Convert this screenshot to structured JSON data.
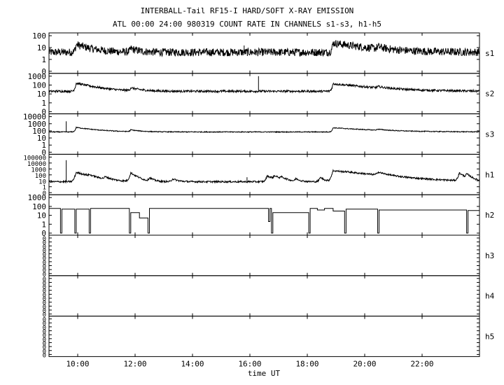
{
  "chart_data": {
    "type": "line",
    "title": "INTERBALL-Tail RF15-I HARD/SOFT X-RAY EMISSION",
    "subtitle": "ATL 00:00 24:00 980319  COUNT RATE IN CHANNELS s1-s3, h1-h5",
    "xlabel": "time UT",
    "xlim": [
      9.0,
      24.0
    ],
    "x_ticks": [
      "10:00",
      "12:00",
      "14:00",
      "16:00",
      "18:00",
      "20:00",
      "22:00"
    ],
    "x_tick_values": [
      10,
      12,
      14,
      16,
      18,
      20,
      22
    ],
    "y_scale": "log",
    "panels": [
      {
        "name": "s1",
        "ytick_labels": [
          "100",
          "10",
          "1",
          "0"
        ],
        "ylim_exp": [
          0,
          2
        ],
        "base": 4,
        "noise": 0.33,
        "peaks": [
          [
            9.95,
            14,
            0.45
          ],
          [
            11.85,
            4,
            0.25
          ],
          [
            18.9,
            20,
            1.0
          ],
          [
            20.45,
            4,
            0.25
          ]
        ],
        "spikes": [
          [
            15.8,
            15
          ]
        ],
        "gaps": []
      },
      {
        "name": "s2",
        "ytick_labels": [
          "1000",
          "100",
          "10",
          "1",
          "0"
        ],
        "ylim_exp": [
          0,
          3
        ],
        "base": 20,
        "noise": 0.12,
        "peaks": [
          [
            9.95,
            140,
            0.55
          ],
          [
            11.85,
            25,
            0.3
          ],
          [
            18.9,
            120,
            1.1
          ],
          [
            20.45,
            20,
            0.3
          ]
        ],
        "spikes": [
          [
            16.3,
            1000
          ]
        ],
        "gaps": []
      },
      {
        "name": "s3",
        "ytick_labels": [
          "10000",
          "1000",
          "100",
          "10",
          "1",
          "0"
        ],
        "ylim_exp": [
          0,
          4
        ],
        "base": 70,
        "noise": 0.06,
        "peaks": [
          [
            9.95,
            230,
            0.6
          ],
          [
            11.85,
            60,
            0.3
          ],
          [
            18.9,
            200,
            1.2
          ],
          [
            20.45,
            50,
            0.3
          ]
        ],
        "spikes": [
          [
            9.6,
            2200
          ]
        ],
        "gaps": []
      },
      {
        "name": "h1",
        "ytick_labels": [
          "100000",
          "10000",
          "1000",
          "100",
          "10",
          "1",
          "0"
        ],
        "ylim_exp": [
          0,
          5
        ],
        "base": 7,
        "noise": 0.14,
        "peaks": [
          [
            9.95,
            250,
            0.35
          ],
          [
            10.4,
            40,
            0.12
          ],
          [
            10.95,
            30,
            0.15
          ],
          [
            11.85,
            200,
            0.15
          ],
          [
            12.5,
            25,
            0.12
          ],
          [
            13.3,
            15,
            0.15
          ],
          [
            16.6,
            60,
            0.2
          ],
          [
            16.85,
            50,
            0.2
          ],
          [
            17.1,
            25,
            0.12
          ],
          [
            17.6,
            15,
            0.12
          ],
          [
            18.45,
            30,
            0.12
          ],
          [
            18.9,
            500,
            0.9
          ],
          [
            19.35,
            60,
            0.15
          ],
          [
            20.45,
            200,
            0.25
          ],
          [
            23.3,
            200,
            0.12
          ],
          [
            23.55,
            120,
            0.12
          ]
        ],
        "spikes": [
          [
            9.6,
            30000
          ],
          [
            15.9,
            40
          ]
        ],
        "gaps": []
      },
      {
        "name": "h2",
        "ytick_labels": [
          "1000",
          "100",
          "10",
          "1",
          "0"
        ],
        "ylim_exp": [
          0,
          3
        ],
        "step": [
          [
            9.0,
            60
          ],
          [
            9.4,
            0
          ],
          [
            9.45,
            50
          ],
          [
            9.9,
            0
          ],
          [
            9.95,
            50
          ],
          [
            10.4,
            0
          ],
          [
            10.45,
            60
          ],
          [
            11.8,
            0
          ],
          [
            11.85,
            20
          ],
          [
            12.15,
            5
          ],
          [
            12.45,
            0
          ],
          [
            12.5,
            60
          ],
          [
            15.0,
            60
          ],
          [
            16.6,
            60
          ],
          [
            16.65,
            2
          ],
          [
            16.7,
            60
          ],
          [
            16.75,
            0
          ],
          [
            16.8,
            20
          ],
          [
            18.05,
            0
          ],
          [
            18.1,
            60
          ],
          [
            18.35,
            40
          ],
          [
            18.6,
            60
          ],
          [
            18.9,
            30
          ],
          [
            19.3,
            0
          ],
          [
            19.35,
            50
          ],
          [
            20.45,
            0
          ],
          [
            20.5,
            40
          ],
          [
            23.55,
            0
          ],
          [
            23.6,
            35
          ]
        ]
      },
      {
        "name": "h3",
        "ytick_labels": [
          "0",
          "0",
          "0",
          "0",
          "0",
          "0",
          "0",
          "0",
          "0",
          "0"
        ],
        "empty": true
      },
      {
        "name": "h4",
        "ytick_labels": [
          "0",
          "0",
          "0",
          "0",
          "0",
          "0",
          "0",
          "0",
          "0",
          "0"
        ],
        "empty": true
      },
      {
        "name": "h5",
        "ytick_labels": [
          "0",
          "0",
          "0",
          "0",
          "0",
          "0",
          "0",
          "0",
          "0",
          "0"
        ],
        "empty": true
      }
    ]
  }
}
